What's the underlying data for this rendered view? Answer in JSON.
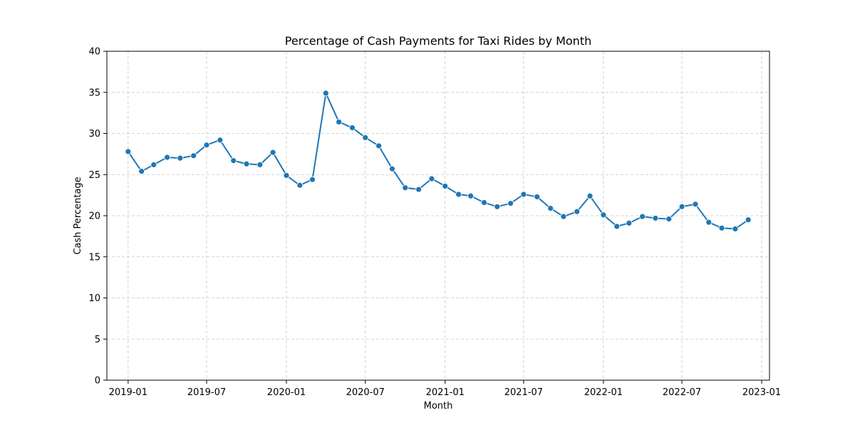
{
  "chart_data": {
    "type": "line",
    "title": "Percentage of Cash Payments for Taxi Rides by Month",
    "xlabel": "Month",
    "ylabel": "Cash Percentage",
    "ylim": [
      0,
      40
    ],
    "xlim": [
      "2018-11-13",
      "2023-01-19"
    ],
    "y_ticks": [
      0,
      5,
      10,
      15,
      20,
      25,
      30,
      35,
      40
    ],
    "x_ticks": [
      {
        "date": "2019-01-01",
        "label": "2019-01"
      },
      {
        "date": "2019-07-01",
        "label": "2019-07"
      },
      {
        "date": "2020-01-01",
        "label": "2020-01"
      },
      {
        "date": "2020-07-01",
        "label": "2020-07"
      },
      {
        "date": "2021-01-01",
        "label": "2021-01"
      },
      {
        "date": "2021-07-01",
        "label": "2021-07"
      },
      {
        "date": "2022-01-01",
        "label": "2022-01"
      },
      {
        "date": "2022-07-01",
        "label": "2022-07"
      },
      {
        "date": "2023-01-01",
        "label": "2023-01"
      }
    ],
    "grid": true,
    "grid_style": "dashed",
    "line_color": "#1f77b4",
    "marker": "circle",
    "series": [
      {
        "x": [
          "2019-01-01",
          "2019-02-01",
          "2019-03-01",
          "2019-04-01",
          "2019-05-01",
          "2019-06-01",
          "2019-07-01",
          "2019-08-01",
          "2019-09-01",
          "2019-10-01",
          "2019-11-01",
          "2019-12-01",
          "2020-01-01",
          "2020-02-01",
          "2020-03-01",
          "2020-04-01",
          "2020-05-01",
          "2020-06-01",
          "2020-07-01",
          "2020-08-01",
          "2020-09-01",
          "2020-10-01",
          "2020-11-01",
          "2020-12-01",
          "2021-01-01",
          "2021-02-01",
          "2021-03-01",
          "2021-04-01",
          "2021-05-01",
          "2021-06-01",
          "2021-07-01",
          "2021-08-01",
          "2021-09-01",
          "2021-10-01",
          "2021-11-01",
          "2021-12-01",
          "2022-01-01",
          "2022-02-01",
          "2022-03-01",
          "2022-04-01",
          "2022-05-01",
          "2022-06-01",
          "2022-07-01",
          "2022-08-01",
          "2022-09-01",
          "2022-10-01",
          "2022-11-01",
          "2022-12-01"
        ],
        "values": [
          27.8,
          25.4,
          26.2,
          27.1,
          27.0,
          27.3,
          28.6,
          29.2,
          26.7,
          26.3,
          26.2,
          27.7,
          24.9,
          23.7,
          24.4,
          34.9,
          31.4,
          30.7,
          29.5,
          28.5,
          25.7,
          23.4,
          23.2,
          24.5,
          23.6,
          22.6,
          22.4,
          21.6,
          21.1,
          21.5,
          22.6,
          22.3,
          20.9,
          19.9,
          20.5,
          22.4,
          20.1,
          18.7,
          19.1,
          19.9,
          19.7,
          19.6,
          21.1,
          21.4,
          19.2,
          18.5,
          18.4,
          19.5
        ]
      }
    ]
  }
}
